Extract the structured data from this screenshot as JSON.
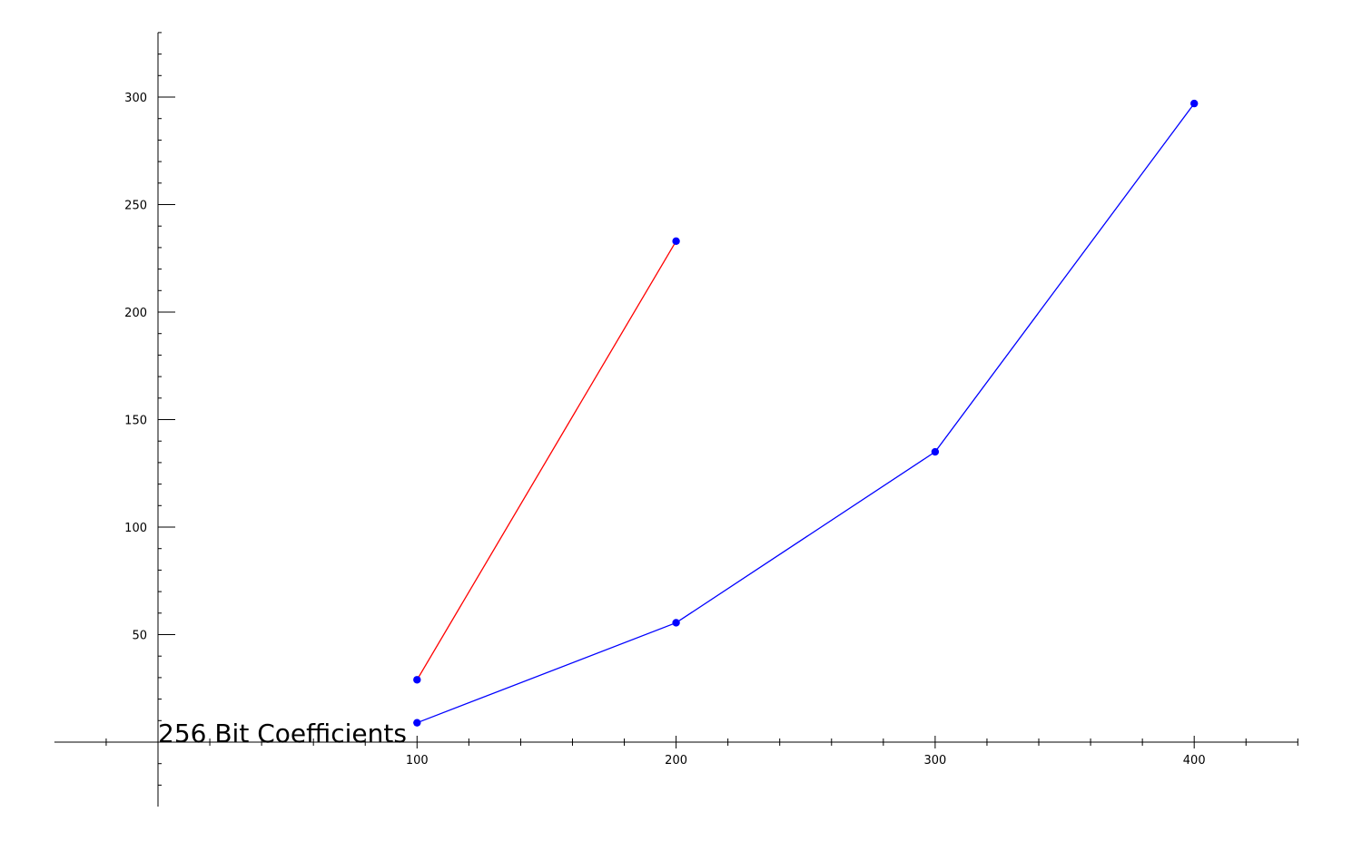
{
  "chart_data": {
    "type": "line",
    "title": "256 Bit Coefficients",
    "xlabel": "",
    "ylabel": "",
    "x_ticks": [
      100,
      200,
      300,
      400
    ],
    "y_ticks": [
      50,
      100,
      150,
      200,
      250,
      300
    ],
    "xlim": [
      -40,
      440
    ],
    "ylim": [
      -30,
      330
    ],
    "grid": false,
    "series": [
      {
        "color": "#ff0000",
        "marker_color": "#0000ff",
        "x": [
          100,
          200
        ],
        "y": [
          29,
          233
        ]
      },
      {
        "color": "#0000ff",
        "marker_color": "#0000ff",
        "x": [
          100,
          200,
          300,
          400
        ],
        "y": [
          9,
          55.5,
          135,
          297
        ]
      }
    ]
  }
}
